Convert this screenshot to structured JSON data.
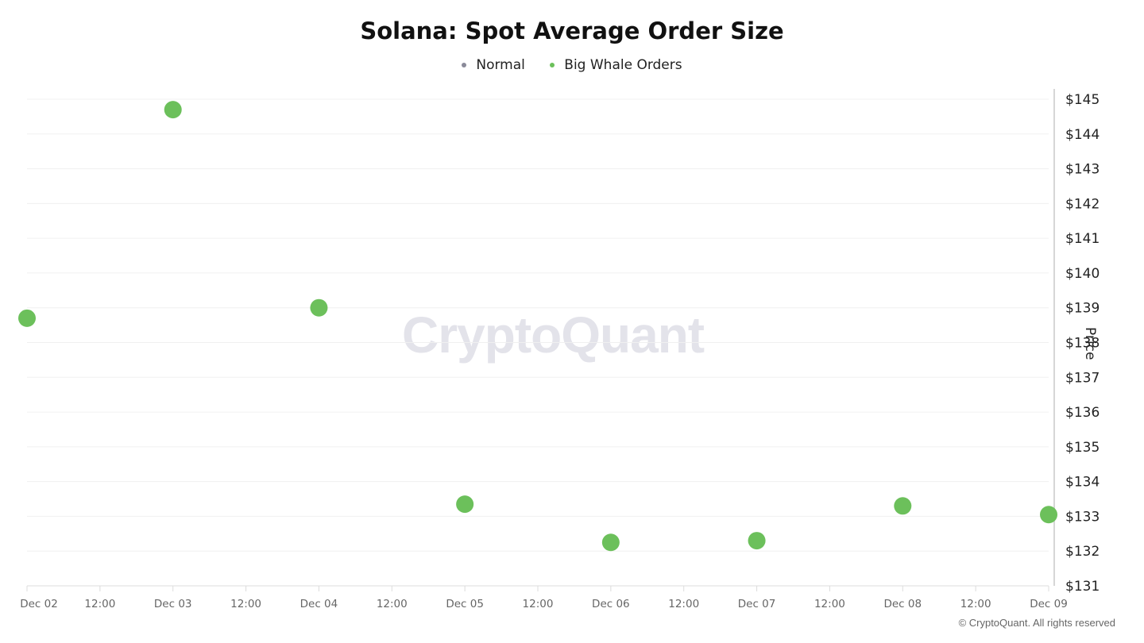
{
  "chart_data": {
    "type": "scatter",
    "title": "Solana: Spot Average Order Size",
    "legend": [
      {
        "name": "Normal",
        "color": "#8a8a99"
      },
      {
        "name": "Big Whale Orders",
        "color": "#6cc05b"
      }
    ],
    "legend_position": "top",
    "x_tick_labels": [
      "Dec 02",
      "12:00",
      "Dec 03",
      "12:00",
      "Dec 04",
      "12:00",
      "Dec 05",
      "12:00",
      "Dec 06",
      "12:00",
      "Dec 07",
      "12:00",
      "Dec 08",
      "12:00",
      "Dec 09"
    ],
    "y_tick_labels": [
      "$145",
      "$144",
      "$143",
      "$142",
      "$141",
      "$140",
      "$139",
      "$138",
      "$137",
      "$136",
      "$135",
      "$134",
      "$133",
      "$132",
      "$131"
    ],
    "xlabel": "",
    "ylabel": "Price",
    "ylim": [
      131,
      145
    ],
    "grid": true,
    "series": [
      {
        "name": "Big Whale Orders",
        "color": "#6cc05b",
        "points": [
          {
            "x": "Dec 02",
            "y": 138.7
          },
          {
            "x": "Dec 03",
            "y": 144.7
          },
          {
            "x": "Dec 04",
            "y": 139.0
          },
          {
            "x": "Dec 05",
            "y": 133.35
          },
          {
            "x": "Dec 06",
            "y": 132.25
          },
          {
            "x": "Dec 07",
            "y": 132.3
          },
          {
            "x": "Dec 08",
            "y": 133.3
          },
          {
            "x": "Dec 09",
            "y": 133.05
          }
        ]
      },
      {
        "name": "Normal",
        "color": "#8a8a99",
        "points": []
      }
    ]
  },
  "watermark": "CryptoQuant",
  "copyright": "© CryptoQuant. All rights reserved"
}
